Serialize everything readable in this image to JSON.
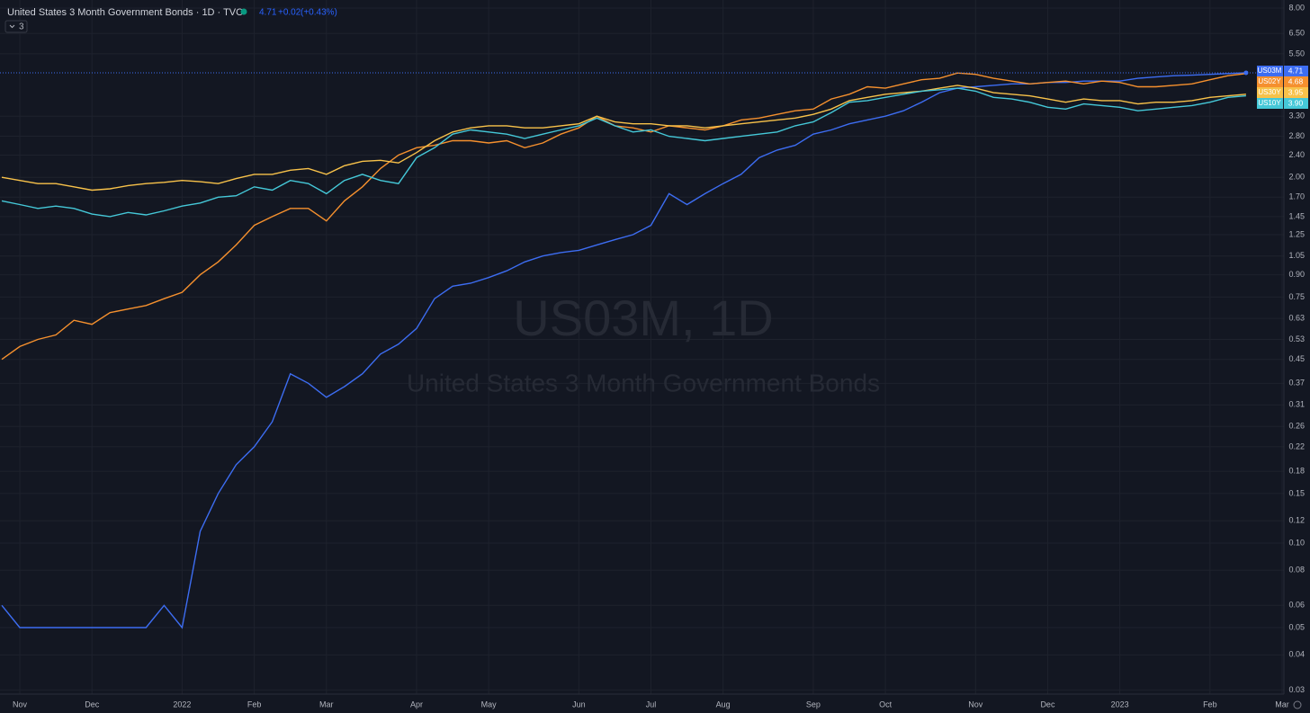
{
  "header": {
    "title": "United States 3 Month Government Bonds · 1D · TVC",
    "last": 4.71,
    "change": "+0.02",
    "change_pct": "(+0.43%)",
    "indicators": 3
  },
  "watermark": {
    "symbol": "US03M, 1D",
    "description": "United States 3 Month Government Bonds"
  },
  "chart_data": {
    "type": "line",
    "log_scale": true,
    "grid": true,
    "categories": [
      null,
      "Nov",
      null,
      null,
      null,
      "Dec",
      null,
      null,
      null,
      null,
      "2022",
      null,
      null,
      null,
      "Feb",
      null,
      null,
      null,
      "Mar",
      null,
      null,
      null,
      null,
      "Apr",
      null,
      null,
      null,
      "May",
      null,
      null,
      null,
      null,
      "Jun",
      null,
      null,
      null,
      "Jul",
      null,
      null,
      null,
      "Aug",
      null,
      null,
      null,
      null,
      "Sep",
      null,
      null,
      null,
      "Oct",
      null,
      null,
      null,
      null,
      "Nov",
      null,
      null,
      null,
      "Dec",
      null,
      null,
      null,
      "2023",
      null,
      null,
      null,
      null,
      "Feb",
      null,
      null,
      null,
      "Mar"
    ],
    "ylim": [
      0.029,
      8.55
    ],
    "yticks": [
      {
        "value": 8,
        "label": "8.00"
      },
      {
        "value": 6.5,
        "label": "6.50"
      },
      {
        "value": 5.5,
        "label": "5.50"
      },
      {
        "value": 3.3,
        "label": "3.30"
      },
      {
        "value": 2.8,
        "label": "2.80"
      },
      {
        "value": 2.4,
        "label": "2.40"
      },
      {
        "value": 2,
        "label": "2.00"
      },
      {
        "value": 1.7,
        "label": "1.70"
      },
      1.45,
      1.25,
      1.05,
      {
        "value": 0.9,
        "label": "0.90"
      },
      0.75,
      0.63,
      0.53,
      0.45,
      0.37,
      0.31,
      0.26,
      0.22,
      0.18,
      0.15,
      0.12,
      {
        "value": 0.1,
        "label": "0.10"
      },
      0.08,
      0.06,
      0.05,
      0.04,
      0.03
    ],
    "series": [
      {
        "name": "US03M",
        "color": "#3d6df2",
        "values": [
          0.06,
          0.05,
          0.05,
          0.05,
          0.05,
          0.05,
          0.05,
          0.05,
          0.05,
          0.06,
          0.05,
          0.11,
          0.15,
          0.19,
          0.22,
          0.27,
          0.4,
          0.37,
          0.33,
          0.36,
          0.4,
          0.47,
          0.51,
          0.58,
          0.74,
          0.82,
          0.84,
          0.88,
          0.93,
          1.0,
          1.05,
          1.08,
          1.1,
          1.15,
          1.2,
          1.25,
          1.35,
          1.75,
          1.6,
          1.75,
          1.9,
          2.05,
          2.35,
          2.5,
          2.6,
          2.85,
          2.95,
          3.1,
          3.2,
          3.3,
          3.45,
          3.7,
          4.0,
          4.15,
          4.2,
          4.25,
          4.3,
          4.3,
          4.35,
          4.35,
          4.4,
          4.4,
          4.4,
          4.5,
          4.55,
          4.6,
          4.62,
          4.65,
          4.68,
          4.71,
          null,
          null
        ],
        "value_labels": [
          null,
          null,
          null,
          null,
          null,
          null,
          null,
          null,
          null,
          null,
          null,
          null,
          null,
          null,
          null,
          null,
          null,
          null,
          null,
          null,
          null,
          null,
          null,
          null,
          null,
          null,
          null,
          null,
          null,
          null,
          null,
          null,
          null,
          null,
          null,
          null,
          null,
          null,
          null,
          null,
          null,
          null,
          null,
          null,
          null,
          null,
          null,
          null,
          null,
          null,
          null,
          null,
          null,
          null,
          null,
          null,
          null,
          null,
          null,
          null,
          null,
          null,
          null,
          null,
          null,
          null,
          null,
          null,
          null,
          "4.71",
          null,
          null
        ]
      },
      {
        "name": "US02Y",
        "color": "#f5902e",
        "values": [
          0.45,
          0.5,
          0.53,
          0.55,
          0.62,
          0.6,
          0.66,
          0.68,
          0.7,
          0.74,
          0.78,
          0.9,
          1.0,
          1.15,
          1.35,
          1.45,
          1.55,
          1.55,
          1.4,
          1.65,
          1.85,
          2.15,
          2.4,
          2.55,
          2.6,
          2.7,
          2.7,
          2.65,
          2.7,
          2.55,
          2.65,
          2.85,
          3.0,
          3.3,
          3.05,
          3.0,
          2.9,
          3.05,
          3.0,
          2.95,
          3.05,
          3.2,
          3.25,
          3.35,
          3.45,
          3.5,
          3.8,
          3.95,
          4.2,
          4.15,
          4.3,
          4.45,
          4.5,
          4.7,
          4.65,
          4.5,
          4.4,
          4.3,
          4.35,
          4.4,
          4.3,
          4.4,
          4.35,
          4.2,
          4.2,
          4.25,
          4.3,
          4.45,
          4.6,
          4.68,
          null,
          null
        ],
        "value_labels": [
          null,
          null,
          null,
          null,
          null,
          null,
          null,
          null,
          null,
          null,
          null,
          null,
          null,
          null,
          null,
          null,
          null,
          null,
          null,
          null,
          null,
          null,
          null,
          null,
          null,
          null,
          null,
          null,
          null,
          null,
          null,
          null,
          null,
          null,
          null,
          null,
          null,
          null,
          null,
          null,
          null,
          null,
          null,
          null,
          null,
          null,
          null,
          null,
          null,
          null,
          null,
          null,
          null,
          null,
          null,
          null,
          null,
          null,
          null,
          null,
          null,
          null,
          null,
          null,
          null,
          null,
          null,
          null,
          null,
          "4.68",
          null,
          null
        ]
      },
      {
        "name": "US30Y",
        "color": "#f8c24a",
        "values": [
          2.0,
          1.95,
          1.9,
          1.9,
          1.85,
          1.8,
          1.82,
          1.87,
          1.9,
          1.92,
          1.95,
          1.93,
          1.9,
          1.98,
          2.05,
          2.05,
          2.12,
          2.15,
          2.05,
          2.2,
          2.28,
          2.3,
          2.25,
          2.45,
          2.7,
          2.9,
          3.0,
          3.05,
          3.05,
          3.0,
          3.0,
          3.05,
          3.1,
          3.3,
          3.15,
          3.1,
          3.1,
          3.05,
          3.05,
          3.0,
          3.05,
          3.1,
          3.15,
          3.2,
          3.25,
          3.35,
          3.5,
          3.75,
          3.85,
          3.95,
          4.0,
          4.05,
          4.15,
          4.25,
          4.15,
          4.0,
          3.95,
          3.9,
          3.8,
          3.7,
          3.8,
          3.75,
          3.75,
          3.65,
          3.7,
          3.7,
          3.75,
          3.85,
          3.9,
          3.95,
          null,
          null
        ],
        "value_labels": [
          null,
          null,
          null,
          null,
          null,
          null,
          null,
          null,
          null,
          null,
          null,
          null,
          null,
          null,
          null,
          null,
          null,
          null,
          null,
          null,
          null,
          null,
          null,
          null,
          null,
          null,
          null,
          null,
          null,
          null,
          null,
          null,
          null,
          null,
          null,
          null,
          null,
          null,
          null,
          null,
          null,
          null,
          null,
          null,
          null,
          null,
          null,
          null,
          null,
          null,
          null,
          null,
          null,
          null,
          null,
          null,
          null,
          null,
          null,
          null,
          null,
          null,
          null,
          null,
          null,
          null,
          null,
          null,
          null,
          "3.95",
          null,
          null
        ]
      },
      {
        "name": "US10Y",
        "color": "#45c8d8",
        "values": [
          1.65,
          1.6,
          1.55,
          1.58,
          1.55,
          1.48,
          1.45,
          1.5,
          1.47,
          1.52,
          1.58,
          1.62,
          1.7,
          1.72,
          1.85,
          1.8,
          1.95,
          1.9,
          1.75,
          1.95,
          2.05,
          1.95,
          1.9,
          2.35,
          2.55,
          2.85,
          2.95,
          2.9,
          2.85,
          2.75,
          2.85,
          2.95,
          3.05,
          3.25,
          3.05,
          2.9,
          2.95,
          2.8,
          2.75,
          2.7,
          2.75,
          2.8,
          2.85,
          2.9,
          3.05,
          3.15,
          3.4,
          3.7,
          3.75,
          3.85,
          3.95,
          4.05,
          4.1,
          4.15,
          4.05,
          3.85,
          3.8,
          3.7,
          3.55,
          3.5,
          3.65,
          3.6,
          3.55,
          3.45,
          3.5,
          3.55,
          3.6,
          3.7,
          3.85,
          3.9,
          null,
          null
        ],
        "value_labels": [
          null,
          null,
          null,
          null,
          null,
          null,
          null,
          null,
          null,
          null,
          null,
          null,
          null,
          null,
          null,
          null,
          null,
          null,
          null,
          null,
          null,
          null,
          null,
          null,
          null,
          null,
          null,
          null,
          null,
          null,
          null,
          null,
          null,
          null,
          null,
          null,
          null,
          null,
          null,
          null,
          null,
          null,
          null,
          null,
          null,
          null,
          null,
          null,
          null,
          null,
          null,
          null,
          null,
          null,
          null,
          null,
          null,
          null,
          null,
          null,
          null,
          null,
          null,
          null,
          null,
          null,
          null,
          null,
          null,
          "3.90",
          null,
          null
        ]
      }
    ]
  }
}
